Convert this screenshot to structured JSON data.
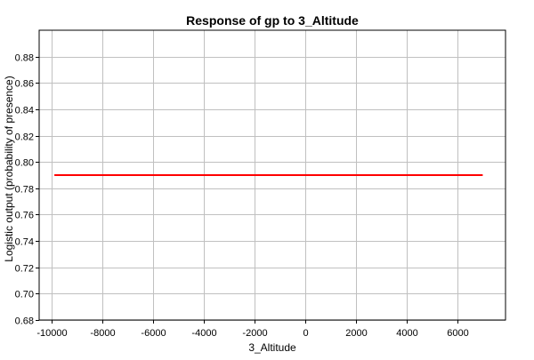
{
  "chart_data": {
    "type": "line",
    "title": "Response of gp to 3_Altitude",
    "xlabel": "3_Altitude",
    "ylabel": "Logistic output (probability of presence)",
    "xlim": [
      -10500,
      7900
    ],
    "ylim": [
      0.68,
      0.9
    ],
    "xticks": [
      -10000,
      -8000,
      -6000,
      -4000,
      -2000,
      0,
      2000,
      4000,
      6000
    ],
    "yticks": [
      0.68,
      0.7,
      0.72,
      0.74,
      0.76,
      0.78,
      0.8,
      0.82,
      0.84,
      0.86,
      0.88
    ],
    "grid": true,
    "series": [
      {
        "color": "#ff0000",
        "x": [
          -9900,
          7000
        ],
        "y": [
          0.79,
          0.79
        ]
      }
    ]
  }
}
